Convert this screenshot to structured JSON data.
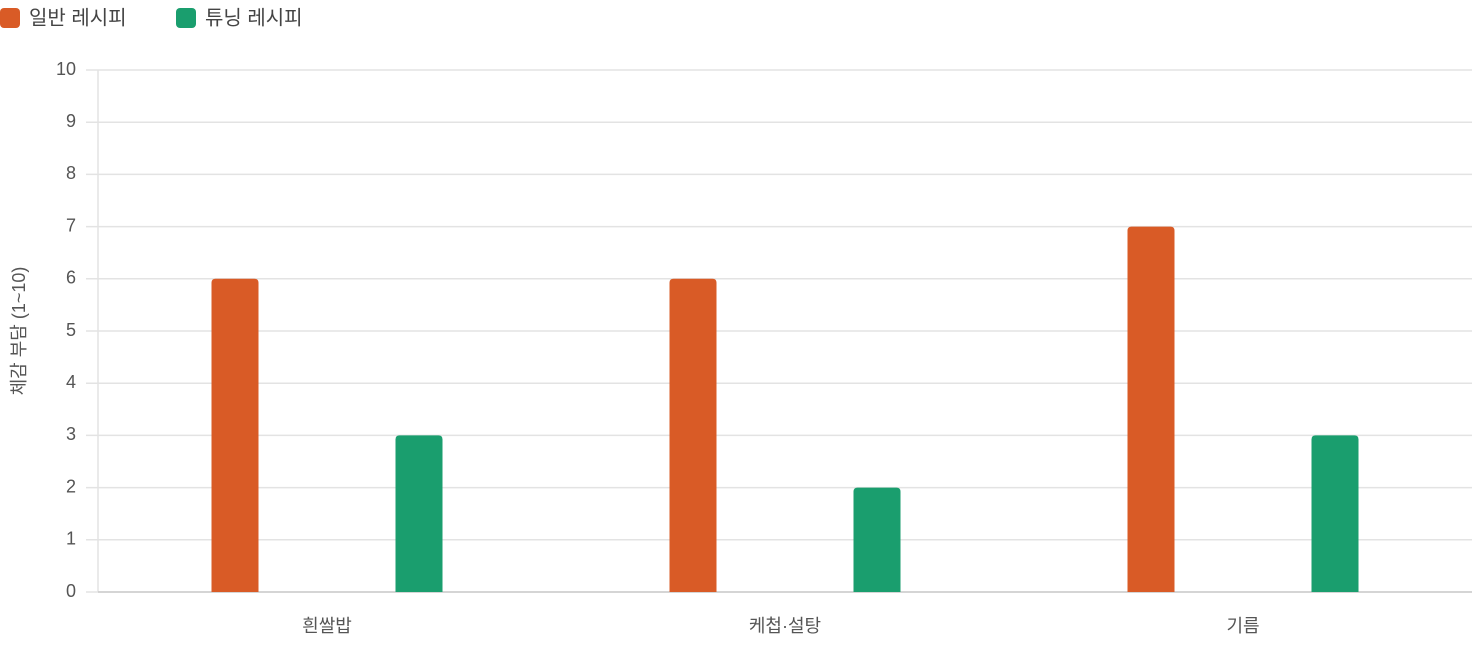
{
  "chart_data": {
    "type": "bar",
    "y_label": "체감 부담 (1~10)",
    "categories": [
      "흰쌀밥",
      "케첩·설탕",
      "기름"
    ],
    "series": [
      {
        "name": "일반 레시피",
        "color": "#d95b26",
        "values": [
          6,
          6,
          7
        ]
      },
      {
        "name": "튜닝 레시피",
        "color": "#1a9e6e",
        "values": [
          3,
          2,
          3
        ]
      }
    ],
    "ylim": [
      0,
      10
    ],
    "yticks": [
      0,
      1,
      2,
      3,
      4,
      5,
      6,
      7,
      8,
      9,
      10
    ],
    "grid": true,
    "legend": "top-left"
  }
}
